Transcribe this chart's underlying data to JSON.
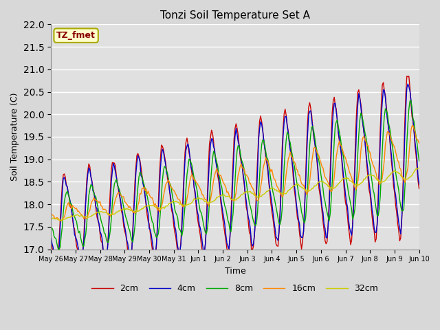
{
  "title": "Tonzi Soil Temperature Set A",
  "xlabel": "Time",
  "ylabel": "Soil Temperature (C)",
  "annotation": "TZ_fmet",
  "ylim": [
    17.0,
    22.0
  ],
  "yticks": [
    17.0,
    17.5,
    18.0,
    18.5,
    19.0,
    19.5,
    20.0,
    20.5,
    21.0,
    21.5,
    22.0
  ],
  "series_colors": [
    "#cc0000",
    "#0000cc",
    "#00aa00",
    "#ff8800",
    "#cccc00"
  ],
  "series_labels": [
    "2cm",
    "4cm",
    "8cm",
    "16cm",
    "32cm"
  ],
  "fig_facecolor": "#d8d8d8",
  "plot_bg_color": "#e0e0e0",
  "x_tick_labels": [
    "May 26",
    "May 27",
    "May 28",
    "May 29",
    "May 30",
    "May 31",
    "Jun 1",
    "Jun 2",
    "Jun 3",
    "Jun 4",
    "Jun 5",
    "Jun 6",
    "Jun 7",
    "Jun 8",
    "Jun 9",
    "Jun 10"
  ],
  "x_tick_positions": [
    0,
    24,
    48,
    72,
    96,
    120,
    144,
    168,
    192,
    216,
    240,
    264,
    288,
    312,
    336,
    360
  ]
}
